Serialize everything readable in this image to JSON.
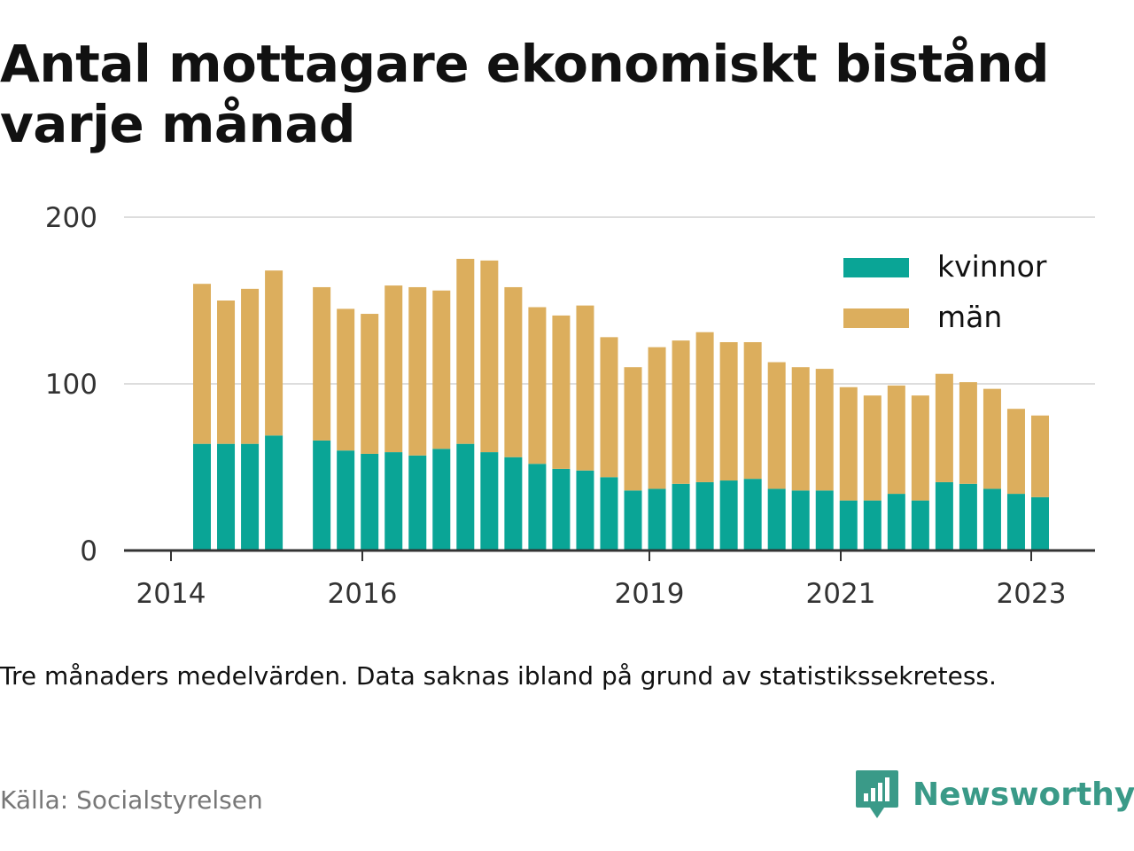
{
  "title": {
    "line1": "Antal mottagare ekonomiskt bistånd",
    "line2": "varje månad"
  },
  "note": "Tre månaders medelvärden. Data saknas ibland på grund av statistikssekretess.",
  "source": "Källa: Socialstyrelsen",
  "brand": {
    "name": "Newsworthy",
    "icon": "newsworthy-logo-icon",
    "color": "#3a9a88"
  },
  "colors": {
    "kvinnor": "#0aa596",
    "man": "#dcae5d",
    "grid": "#dddddd",
    "axis": "#333333"
  },
  "chart_data": {
    "type": "bar",
    "stacked": true,
    "ylim": [
      0,
      200
    ],
    "yticks": [
      "0",
      "100",
      "200"
    ],
    "xticks": [
      "2014",
      "2016",
      "2019",
      "2021",
      "2023"
    ],
    "grid": true,
    "legend_position": "top-right",
    "series": [
      {
        "name": "kvinnor",
        "color": "#0aa596",
        "values": [
          64,
          64,
          64,
          69,
          null,
          66,
          60,
          58,
          59,
          57,
          61,
          64,
          59,
          56,
          52,
          49,
          48,
          44,
          36,
          37,
          40,
          41,
          42,
          43,
          37,
          36,
          36,
          30,
          30,
          34,
          30,
          41,
          40,
          37,
          34,
          32
        ]
      },
      {
        "name": "män",
        "color": "#dcae5d",
        "values": [
          96,
          86,
          93,
          99,
          null,
          92,
          85,
          84,
          100,
          101,
          95,
          111,
          115,
          102,
          94,
          92,
          99,
          84,
          74,
          85,
          86,
          90,
          83,
          82,
          76,
          74,
          73,
          68,
          63,
          65,
          63,
          65,
          61,
          60,
          51,
          49
        ]
      }
    ]
  }
}
